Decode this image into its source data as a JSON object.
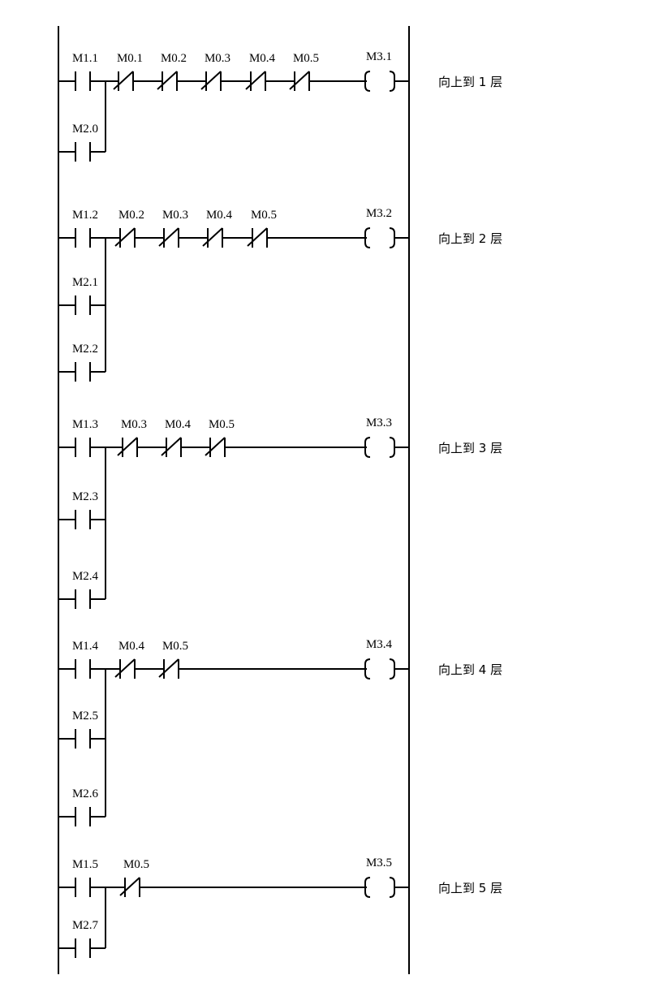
{
  "rungs": [
    {
      "contact": "M1.1",
      "branches": [
        "M2.0"
      ],
      "nc": [
        "M0.1",
        "M0.2",
        "M0.3",
        "M0.4",
        "M0.5"
      ],
      "coil": "M3.1",
      "comment": "向上到 1 层"
    },
    {
      "contact": "M1.2",
      "branches": [
        "M2.1",
        "M2.2"
      ],
      "nc": [
        "M0.2",
        "M0.3",
        "M0.4",
        "M0.5"
      ],
      "coil": "M3.2",
      "comment": "向上到 2 层"
    },
    {
      "contact": "M1.3",
      "branches": [
        "M2.3",
        "M2.4"
      ],
      "nc": [
        "M0.3",
        "M0.4",
        "M0.5"
      ],
      "coil": "M3.3",
      "comment": "向上到 3 层"
    },
    {
      "contact": "M1.4",
      "branches": [
        "M2.5",
        "M2.6"
      ],
      "nc": [
        "M0.4",
        "M0.5"
      ],
      "coil": "M3.4",
      "comment": "向上到 4 层"
    },
    {
      "contact": "M1.5",
      "branches": [
        "M2.7"
      ],
      "nc": [
        "M0.5"
      ],
      "coil": "M3.5",
      "comment": "向上到 5 层"
    }
  ]
}
